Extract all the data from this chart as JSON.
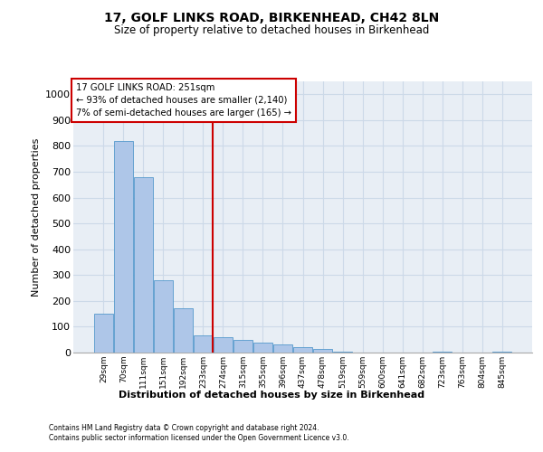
{
  "title": "17, GOLF LINKS ROAD, BIRKENHEAD, CH42 8LN",
  "subtitle": "Size of property relative to detached houses in Birkenhead",
  "xlabel": "Distribution of detached houses by size in Birkenhead",
  "ylabel": "Number of detached properties",
  "footnote1": "Contains HM Land Registry data © Crown copyright and database right 2024.",
  "footnote2": "Contains public sector information licensed under the Open Government Licence v3.0.",
  "bar_color": "#aec6e8",
  "bar_edge_color": "#5599cc",
  "vline_color": "#cc0000",
  "annotation_text_line1": "17 GOLF LINKS ROAD: 251sqm",
  "annotation_text_line2": "← 93% of detached houses are smaller (2,140)",
  "annotation_text_line3": "7% of semi-detached houses are larger (165) →",
  "annotation_box_color": "#ffffff",
  "annotation_border_color": "#cc0000",
  "categories": [
    "29sqm",
    "70sqm",
    "111sqm",
    "151sqm",
    "192sqm",
    "233sqm",
    "274sqm",
    "315sqm",
    "355sqm",
    "396sqm",
    "437sqm",
    "478sqm",
    "519sqm",
    "559sqm",
    "600sqm",
    "641sqm",
    "682sqm",
    "723sqm",
    "763sqm",
    "804sqm",
    "845sqm"
  ],
  "bar_heights": [
    150,
    820,
    680,
    280,
    170,
    65,
    60,
    50,
    40,
    30,
    20,
    15,
    5,
    0,
    0,
    0,
    0,
    5,
    0,
    0,
    5
  ],
  "ylim": [
    0,
    1050
  ],
  "yticks": [
    0,
    100,
    200,
    300,
    400,
    500,
    600,
    700,
    800,
    900,
    1000
  ],
  "grid_color": "#ccd9e8",
  "background_color": "#e8eef5",
  "fig_background": "#ffffff",
  "vline_bin": 5.5
}
